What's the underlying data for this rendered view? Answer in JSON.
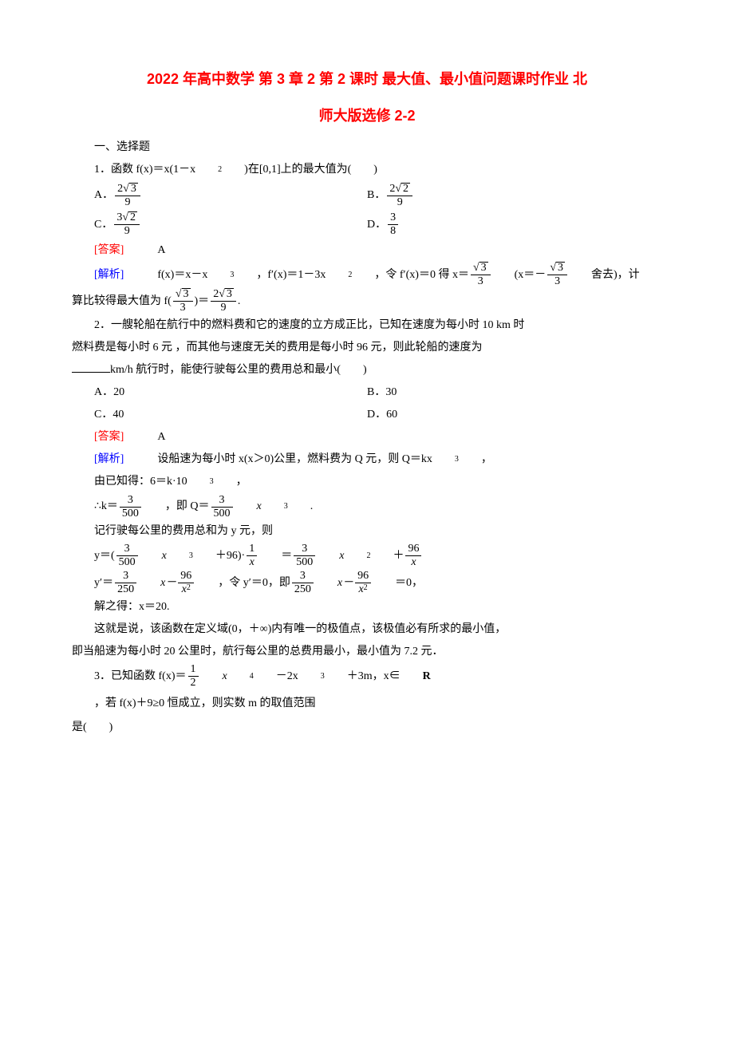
{
  "colors": {
    "title": "#ff0000",
    "answer": "#ff0000",
    "jiexi": "#0000ff",
    "text": "#000000",
    "bg": "#ffffff"
  },
  "fonts": {
    "body_size_pt": 10.5,
    "title_size_pt": 15,
    "title_family": "SimHei",
    "body_family": "SimSun"
  },
  "title": {
    "line1": "2022 年高中数学 第 3 章 2 第 2 课时 最大值、最小值问题课时作业 北",
    "line2": "师大版选修 2-2"
  },
  "sec1": "一、选择题",
  "q1": {
    "stem_pre": "1．函数 f(x)＝x(1－x",
    "stem_post": ")在[0,1]上的最大值为(　　)",
    "optA": "A．",
    "optB": "B．",
    "optC": "C．",
    "optD": "D．",
    "fracA_num_a": "2",
    "fracA_num_b": "3",
    "fracA_den": "9",
    "fracB_num_a": "2",
    "fracB_num_b": "2",
    "fracB_den": "9",
    "fracC_num_a": "3",
    "fracC_num_b": "2",
    "fracC_den": "9",
    "fracD_num": "3",
    "fracD_den": "8",
    "ans_label": "[答案]",
    "ans": "　A",
    "jiexi_label": "[解析]",
    "jiexi_t1": "　f(x)＝x－x",
    "jiexi_t2": "，f′(x)＝1－3x",
    "jiexi_t3": "，令 f′(x)＝0 得 x＝",
    "jiexi_t4": "(x＝－",
    "jiexi_t5": "舍去)，计",
    "jiexi_t6": "算比较得最大值为 f(",
    "jiexi_t7": ")＝",
    "jiexi_t8": ".",
    "sqrt3": "3",
    "den3": "3"
  },
  "q2": {
    "l1": "2．一艘轮船在航行中的燃料费和它的速度的立方成正比，已知在速度为每小时 10 km 时",
    "l2": "燃料费是每小时 6 元 ，而其他与速度无关的费用是每小时 96 元，则此轮船的速度为",
    "l3a": "",
    "l3b": "km/h 航行时，能使行驶每公里的费用总和最小(　　)",
    "A": "A．20",
    "B": "B．30",
    "C": "C．40",
    "D": "D．60",
    "ans_label": "[答案]",
    "ans": "　A",
    "jiexi_label": "[解析]",
    "jx1": "　设船速为每小时 x(x＞0)公里，燃料费为 Q 元，则 Q＝kx",
    "jx1b": "，",
    "jx2": "由已知得：6＝k·10",
    "jx2b": "，",
    "jx3a": "∴k＝",
    "jx3b": "，即 Q＝",
    "jx3c": "x",
    "jx3d": ".",
    "k_num": "3",
    "k_den": "500",
    "jx4": "记行驶每公里的费用总和为 y 元，则",
    "jx5a": "y＝(",
    "jx5b": "x",
    "jx5c": "＋96)·",
    "jx5d": "＝",
    "jx5e": "x",
    "jx5f": "＋",
    "one": "1",
    "x": "x",
    "n96": "96",
    "jx6a": "y′＝",
    "jx6b": "x－",
    "jx6c": "，令 y′＝0，即",
    "jx6d": "x－",
    "jx6e": "＝0，",
    "n250": "250",
    "n3": "3",
    "jx7": "解之得：x＝20.",
    "jx8": "这就是说，该函数在定义域(0，＋∞)内有唯一的极值点，该极值必有所求的最小值，",
    "jx9": "即当船速为每小时 20 公里时，航行每公里的总费用最小，最小值为 7.2 元．"
  },
  "q3": {
    "s1": "3．已知函数 f(x)＝",
    "s2": "x",
    "s3": "－2x",
    "s4": "＋3m，x∈",
    "real": "R",
    "s5": "，若 f(x)＋9≥0 恒成立，则实数 m 的取值范围",
    "s6": "是(　　)",
    "half_num": "1",
    "half_den": "2"
  }
}
